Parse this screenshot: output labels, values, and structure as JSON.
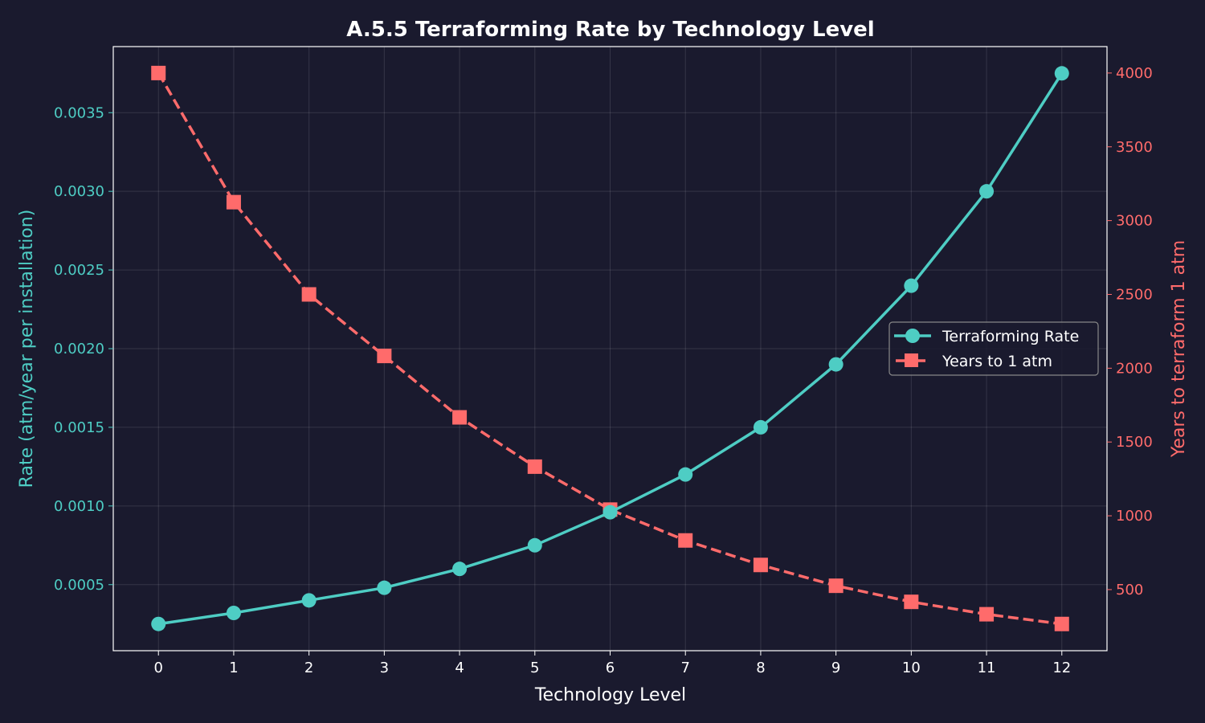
{
  "chart_data": {
    "type": "line",
    "title": "A.5.5 Terraforming Rate by Technology Level",
    "xlabel": "Technology Level",
    "ylabel_left": "Rate (atm/year per installation)",
    "ylabel_right": "Years to terraform 1 atm",
    "x": [
      0,
      1,
      2,
      3,
      4,
      5,
      6,
      7,
      8,
      9,
      10,
      11,
      12
    ],
    "xlim": [
      -0.6,
      12.6
    ],
    "ylim_left": [
      8e-05,
      0.00392
    ],
    "ylim_right": [
      86,
      4179
    ],
    "yticks_left": [
      "0.0005",
      "0.0010",
      "0.0015",
      "0.0020",
      "0.0025",
      "0.0030",
      "0.0035"
    ],
    "yticks_right": [
      "500",
      "1000",
      "1500",
      "2000",
      "2500",
      "3000",
      "3500",
      "4000"
    ],
    "grid": true,
    "legend_position": "center-right",
    "colors": {
      "background": "#1a1a2e",
      "rate": "#4ecdc4",
      "years": "#ff6b6b",
      "text": "#ffffff"
    },
    "series": [
      {
        "name": "Terraforming Rate",
        "axis": "left",
        "style": "solid-circle",
        "values": [
          0.00025,
          0.00032,
          0.0004,
          0.00048,
          0.0006,
          0.00075,
          0.00096,
          0.0012,
          0.0015,
          0.0019,
          0.0024,
          0.003,
          0.00375
        ]
      },
      {
        "name": "Years to 1 atm",
        "axis": "right",
        "style": "dashed-square",
        "values": [
          4000,
          3125,
          2500,
          2083,
          1667,
          1333,
          1042,
          833,
          667,
          526,
          417,
          333,
          267
        ]
      }
    ]
  }
}
